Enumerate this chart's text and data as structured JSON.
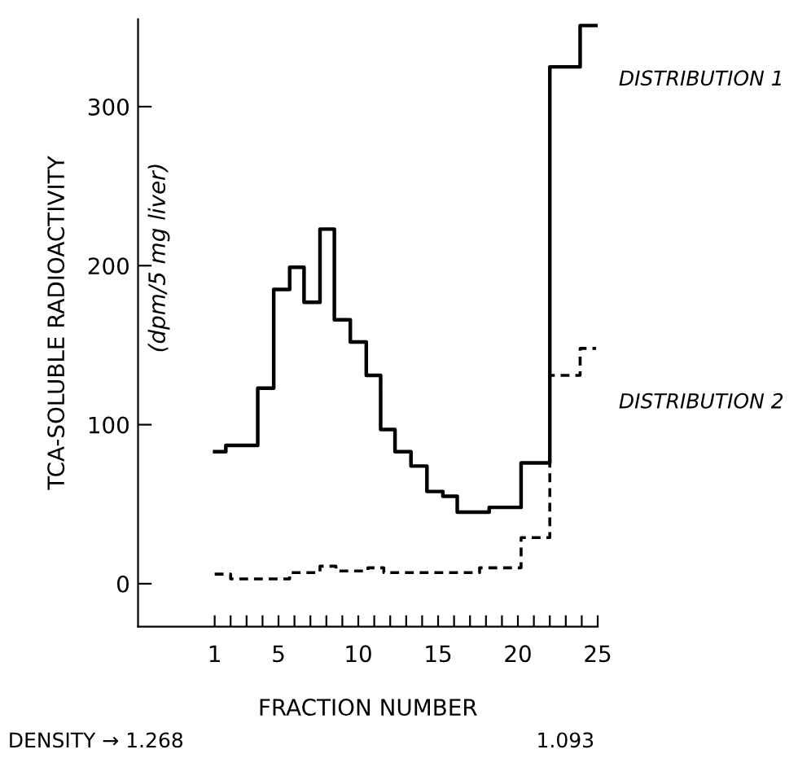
{
  "chart_data": {
    "type": "step",
    "xlabel": "FRACTION NUMBER",
    "ylabel": "TCA-SOLUBLE RADIOACTIVITY",
    "annotations": [
      "(dpm/5 mg liver)",
      "DENSITY → 1.268",
      "1.093"
    ],
    "xlim": [
      -3.8,
      25
    ],
    "ylim": [
      -27,
      355
    ],
    "xticks": [
      1,
      {
        "value": 2,
        "label": null
      },
      {
        "value": 3,
        "label": null
      },
      {
        "value": 4,
        "label": null
      },
      5,
      {
        "value": 6,
        "label": null
      },
      {
        "value": 7,
        "label": null
      },
      {
        "value": 8,
        "label": null
      },
      {
        "value": 9,
        "label": null
      },
      10,
      {
        "value": 11,
        "label": null
      },
      {
        "value": 12,
        "label": null
      },
      {
        "value": 13,
        "label": null
      },
      {
        "value": 14,
        "label": null
      },
      15,
      {
        "value": 16,
        "label": null
      },
      {
        "value": 17,
        "label": null
      },
      {
        "value": 18,
        "label": null
      },
      {
        "value": 19,
        "label": null
      },
      20,
      {
        "value": 21,
        "label": null
      },
      {
        "value": 22,
        "label": null
      },
      {
        "value": 23,
        "label": null
      },
      {
        "value": 24,
        "label": null
      },
      25
    ],
    "yticks": [
      0,
      100,
      200,
      300
    ],
    "grid": false,
    "legend": false,
    "series": [
      {
        "name": "DISTRIBUTION 1",
        "color": "#000000",
        "line_style": "solid",
        "x": [
          1.0,
          1.7,
          2.7,
          3.7,
          4.7,
          5.7,
          6.6,
          7.6,
          8.5,
          9.5,
          10.5,
          11.4,
          12.3,
          13.3,
          14.3,
          15.3,
          16.2,
          18.2,
          20.2,
          22.0,
          23.9,
          24.9
        ],
        "values": [
          83,
          87,
          87,
          123,
          185,
          199,
          177,
          223,
          166,
          152,
          131,
          97,
          83,
          74,
          58,
          55,
          45,
          48,
          76,
          325,
          351,
          351
        ]
      },
      {
        "name": "DISTRIBUTION 2",
        "color": "#000000",
        "line_style": "dashed",
        "x": [
          1.0,
          2.0,
          5.7,
          7.6,
          8.6,
          10.6,
          11.6,
          17.6,
          20.2,
          22.0,
          23.9,
          24.9
        ],
        "values": [
          6,
          3,
          7,
          11,
          8,
          10,
          7,
          10,
          29,
          131,
          148,
          148
        ]
      }
    ]
  }
}
